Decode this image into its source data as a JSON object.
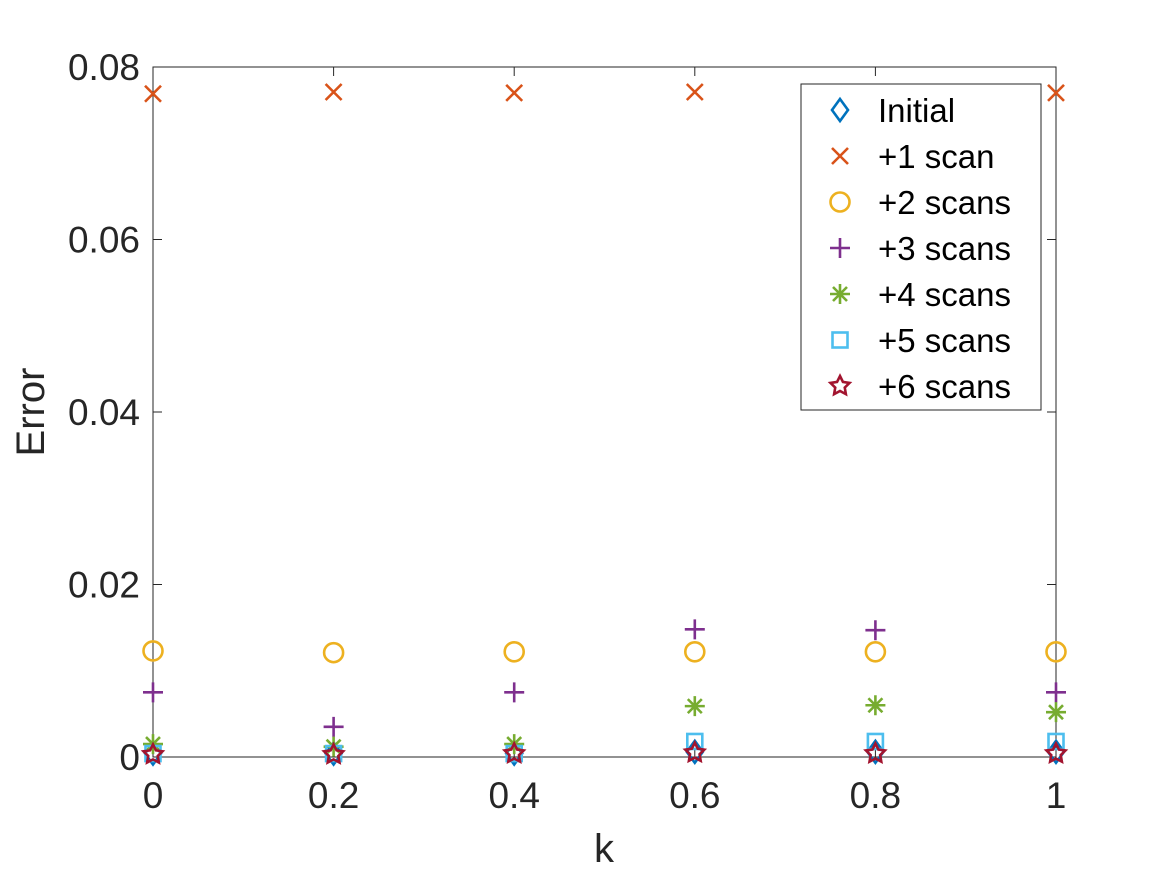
{
  "chart_data": {
    "type": "scatter",
    "xlabel": "k",
    "ylabel": "Error",
    "xlim": [
      0,
      1
    ],
    "ylim": [
      0,
      0.08
    ],
    "xticks": [
      "0",
      "0.2",
      "0.4",
      "0.6",
      "0.8",
      "1"
    ],
    "yticks": [
      "0",
      "0.02",
      "0.04",
      "0.06",
      "0.08"
    ],
    "grid": false,
    "legend_position": "top-right",
    "x": [
      0,
      0.2,
      0.4,
      0.6,
      0.8,
      1
    ],
    "series": [
      {
        "name": "Initial",
        "marker": "diamond",
        "color": "#0072BD",
        "values": [
          0.0004,
          0.0004,
          0.0004,
          0.0006,
          0.0006,
          0.0006
        ]
      },
      {
        "name": "+1 scan",
        "marker": "x",
        "color": "#D95319",
        "values": [
          0.0769,
          0.0771,
          0.077,
          0.0771,
          0.0769,
          0.077
        ]
      },
      {
        "name": "+2 scans",
        "marker": "circle",
        "color": "#EDB120",
        "values": [
          0.0123,
          0.0121,
          0.0122,
          0.0122,
          0.0122,
          0.0122
        ]
      },
      {
        "name": "+3 scans",
        "marker": "plus",
        "color": "#7E2F8E",
        "values": [
          0.0075,
          0.0035,
          0.0075,
          0.0148,
          0.0147,
          0.0075
        ]
      },
      {
        "name": "+4 scans",
        "marker": "asterisk",
        "color": "#77AC30",
        "values": [
          0.0015,
          0.0012,
          0.0015,
          0.0059,
          0.006,
          0.0052
        ]
      },
      {
        "name": "+5 scans",
        "marker": "square",
        "color": "#4DBEEE",
        "values": [
          0.0004,
          0.0004,
          0.0004,
          0.0018,
          0.0018,
          0.0018
        ]
      },
      {
        "name": "+6 scans",
        "marker": "hexagram",
        "color": "#A2142F",
        "values": [
          0.0003,
          0.0003,
          0.0004,
          0.0005,
          0.0004,
          0.0004
        ]
      }
    ]
  }
}
